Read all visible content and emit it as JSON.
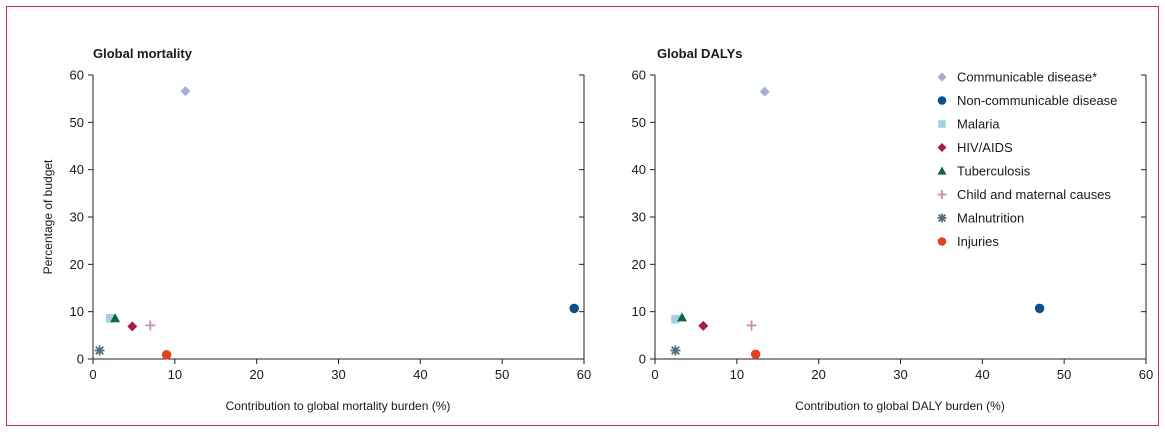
{
  "chart_data": [
    {
      "type": "scatter",
      "title": "Global mortality",
      "xlabel": "Contribution to global mortality burden (%)",
      "ylabel": "Percentage of budget",
      "xlim": [
        0,
        60
      ],
      "ylim": [
        0,
        60
      ],
      "xticks": [
        0,
        10,
        20,
        30,
        40,
        50,
        60
      ],
      "yticks": [
        0,
        10,
        20,
        30,
        40,
        50,
        60
      ],
      "series": [
        {
          "name": "Communicable disease*",
          "x": 11.3,
          "y": 56.6
        },
        {
          "name": "Non-communicable disease",
          "x": 58.8,
          "y": 10.7
        },
        {
          "name": "Malaria",
          "x": 2.1,
          "y": 8.6
        },
        {
          "name": "HIV/AIDS",
          "x": 4.8,
          "y": 6.9
        },
        {
          "name": "Tuberculosis",
          "x": 2.7,
          "y": 8.6
        },
        {
          "name": "Child and maternal causes",
          "x": 7.0,
          "y": 7.1
        },
        {
          "name": "Malnutrition",
          "x": 0.8,
          "y": 1.8
        },
        {
          "name": "Injuries",
          "x": 9.0,
          "y": 0.9
        }
      ]
    },
    {
      "type": "scatter",
      "title": "Global DALYs",
      "xlabel": "Contribution to global DALY burden (%)",
      "ylabel": "",
      "xlim": [
        0,
        60
      ],
      "ylim": [
        0,
        60
      ],
      "xticks": [
        0,
        10,
        20,
        30,
        40,
        50,
        60
      ],
      "yticks": [
        0,
        10,
        20,
        30,
        40,
        50,
        60
      ],
      "legend_position": "top-right",
      "series": [
        {
          "name": "Communicable disease*",
          "x": 13.4,
          "y": 56.5
        },
        {
          "name": "Non-communicable disease",
          "x": 47.0,
          "y": 10.7
        },
        {
          "name": "Malaria",
          "x": 2.5,
          "y": 8.4
        },
        {
          "name": "HIV/AIDS",
          "x": 5.9,
          "y": 7.0
        },
        {
          "name": "Tuberculosis",
          "x": 3.3,
          "y": 8.8
        },
        {
          "name": "Child and maternal causes",
          "x": 11.8,
          "y": 7.1
        },
        {
          "name": "Malnutrition",
          "x": 2.5,
          "y": 1.8
        },
        {
          "name": "Injuries",
          "x": 12.3,
          "y": 1.0
        }
      ]
    }
  ],
  "legend": [
    {
      "label": "Communicable disease*",
      "marker": "diamond",
      "color": "#a6aed8"
    },
    {
      "label": "Non-communicable disease",
      "marker": "circle",
      "color": "#0b4f8f"
    },
    {
      "label": "Malaria",
      "marker": "square",
      "color": "#9fd3e1"
    },
    {
      "label": "HIV/AIDS",
      "marker": "diamond",
      "color": "#a51c4a"
    },
    {
      "label": "Tuberculosis",
      "marker": "triangle",
      "color": "#12683e"
    },
    {
      "label": "Child and maternal causes",
      "marker": "plus",
      "color": "#c48ab8"
    },
    {
      "label": "Malnutrition",
      "marker": "asterisk",
      "color": "#4f6f80"
    },
    {
      "label": "Injuries",
      "marker": "circle",
      "color": "#e64022"
    }
  ],
  "colors": {
    "frame": "#c0286e"
  }
}
